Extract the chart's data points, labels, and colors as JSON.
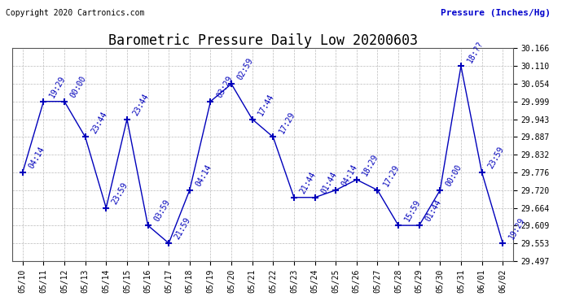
{
  "title": "Barometric Pressure Daily Low 20200603",
  "ylabel": "Pressure (Inches/Hg)",
  "copyright": "Copyright 2020 Cartronics.com",
  "background_color": "#ffffff",
  "line_color": "#0000bb",
  "marker_color": "#0000bb",
  "grid_color": "#bbbbbb",
  "text_color": "#0000bb",
  "ylabel_color": "#0000cc",
  "dates": [
    "05/10",
    "05/11",
    "05/12",
    "05/13",
    "05/14",
    "05/15",
    "05/16",
    "05/17",
    "05/18",
    "05/19",
    "05/20",
    "05/21",
    "05/22",
    "05/23",
    "05/24",
    "05/25",
    "05/26",
    "05/27",
    "05/28",
    "05/29",
    "05/30",
    "05/31",
    "06/01",
    "06/02"
  ],
  "values": [
    29.776,
    29.999,
    29.999,
    29.887,
    29.664,
    29.943,
    29.609,
    29.553,
    29.72,
    29.999,
    30.054,
    29.943,
    29.887,
    29.697,
    29.697,
    29.72,
    29.753,
    29.72,
    29.609,
    29.609,
    29.72,
    30.11,
    29.776,
    29.553
  ],
  "annotations": [
    "04:14",
    "19:29",
    "00:00",
    "23:44",
    "23:59",
    "23:44",
    "03:59",
    "21:59",
    "04:14",
    "03:29",
    "02:59",
    "17:44",
    "17:29",
    "21:44",
    "01:44",
    "04:14",
    "18:29",
    "17:29",
    "15:59",
    "01:44",
    "00:00",
    "18:??",
    "23:59",
    "19:29"
  ],
  "ylim_min": 29.497,
  "ylim_max": 30.166,
  "yticks": [
    29.497,
    29.553,
    29.609,
    29.664,
    29.72,
    29.776,
    29.832,
    29.887,
    29.943,
    29.999,
    30.054,
    30.11,
    30.166
  ],
  "title_fontsize": 12,
  "tick_fontsize": 7,
  "annot_fontsize": 7,
  "copyright_fontsize": 7,
  "ylabel_fontsize": 8
}
